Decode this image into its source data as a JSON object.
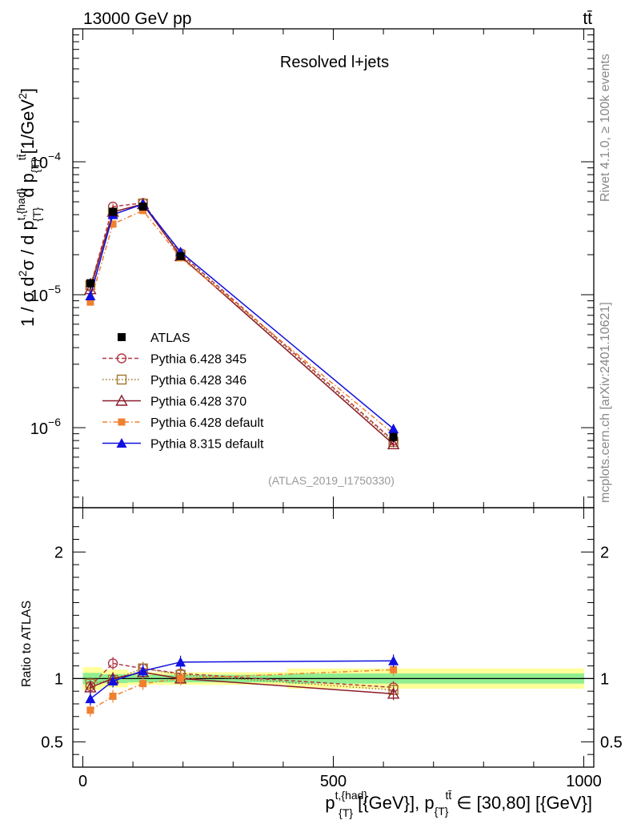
{
  "header": {
    "left": "13000 GeV pp",
    "right": "tt̄"
  },
  "side_labels": {
    "rivet": "Rivet 4.1.0, ≥ 100k events",
    "mcplots": "mcplots.cern.ch [arXiv:2401.10621]"
  },
  "chart_data": {
    "type": "line",
    "title": "Resolved l+jets",
    "analysis_tag": "(ATLAS_2019_I1750330)",
    "xlabel": "p^{t,{had}}_{T} [{GeV}], p_{T}^{tt̄} ∈ [30,80] [{GeV}]",
    "xlabel_parts": {
      "p1": "p",
      "sup1": "t,{had}",
      "sub1": "{T}",
      "mid": " [{GeV}], p",
      "sub2": "{T}",
      "sup2": "tt̄",
      "end": " ∈ [30,80] [{GeV}]"
    },
    "ylabel": "1 / σ d²σ / d p^{t,{had}}_{T} d p_{T}^{tt̄} [1/GeV²]",
    "ylabel_parts": {
      "a": "1 / σ d",
      "a_sup": "2",
      "b": "σ / d p",
      "b_sup": "t,{had}",
      "b_sub": "{T}",
      "c": " d p",
      "c_sub": "{T}",
      "c_sup": "tt̄",
      "d": "[1/GeV",
      "d_sup": "2",
      "e": "]"
    },
    "xlim": [
      -20,
      1020
    ],
    "ylim_log": [
      2.5e-07,
      0.001
    ],
    "x_ticks": [
      {
        "value": 0,
        "label": "0"
      },
      {
        "value": 500,
        "label": "500"
      },
      {
        "value": 1000,
        "label": "1000"
      }
    ],
    "y_ticks": [
      {
        "value": 0.0001,
        "mant": "10",
        "exp": "−4"
      },
      {
        "value": 1e-05,
        "mant": "10",
        "exp": "−5"
      },
      {
        "value": 1e-06,
        "mant": "10",
        "exp": "−6"
      }
    ],
    "x": [
      15,
      60,
      120,
      195,
      620
    ],
    "data": {
      "name": "ATLAS",
      "values": [
        1.22e-05,
        4.2e-05,
        4.6e-05,
        1.95e-05,
        8.5e-07
      ],
      "rel_err_inner": [
        0.045,
        0.035,
        0.03,
        0.03,
        0.04
      ],
      "rel_err_outer": [
        0.09,
        0.07,
        0.05,
        0.05,
        0.08
      ],
      "band_inner": "#90ee90",
      "band_outer": "#ffff99"
    },
    "series": [
      {
        "name": "Pythia 6.428 345",
        "color": "#b03a48",
        "marker": "open-circle",
        "dash": "5,3",
        "values": [
          1.15e-05,
          4.6e-05,
          4.9e-05,
          2.05e-05,
          8e-07
        ],
        "ratio": [
          0.94,
          1.12,
          1.08,
          1.04,
          0.93
        ]
      },
      {
        "name": "Pythia 6.428 346",
        "color": "#a0742a",
        "marker": "open-square",
        "dash": "1.5,2.5",
        "values": [
          1.18e-05,
          4.15e-05,
          4.85e-05,
          2e-05,
          7.8e-07
        ],
        "ratio": [
          0.96,
          0.99,
          1.08,
          1.03,
          0.91
        ]
      },
      {
        "name": "Pythia 6.428 370",
        "color": "#8b1a2a",
        "marker": "open-triangle",
        "dash": "",
        "values": [
          1.1e-05,
          4.2e-05,
          4.8e-05,
          1.95e-05,
          7.5e-07
        ],
        "ratio": [
          0.93,
          1.0,
          1.05,
          1.0,
          0.88
        ]
      },
      {
        "name": "Pythia 6.428 default",
        "color": "#f08030",
        "marker": "filled-square",
        "dash": "6,3,1.5,3",
        "values": [
          8.8e-06,
          3.4e-05,
          4.3e-05,
          1.9e-05,
          9e-07
        ],
        "ratio": [
          0.75,
          0.86,
          0.96,
          1.0,
          1.07
        ]
      },
      {
        "name": "Pythia 8.315 default",
        "color": "#1010e0",
        "marker": "filled-triangle",
        "dash": "",
        "values": [
          9.8e-06,
          4e-05,
          4.8e-05,
          2.1e-05,
          9.8e-07
        ],
        "ratio": [
          0.84,
          0.98,
          1.06,
          1.13,
          1.14
        ]
      }
    ],
    "ratio_panel": {
      "ylabel": "Ratio to ATLAS",
      "ylim": [
        0.3,
        2.35
      ],
      "y_ticks": [
        {
          "value": 0.5,
          "label": "0.5"
        },
        {
          "value": 1,
          "label": "1"
        },
        {
          "value": 2,
          "label": "2"
        }
      ]
    },
    "legend_placement": "center-left"
  }
}
